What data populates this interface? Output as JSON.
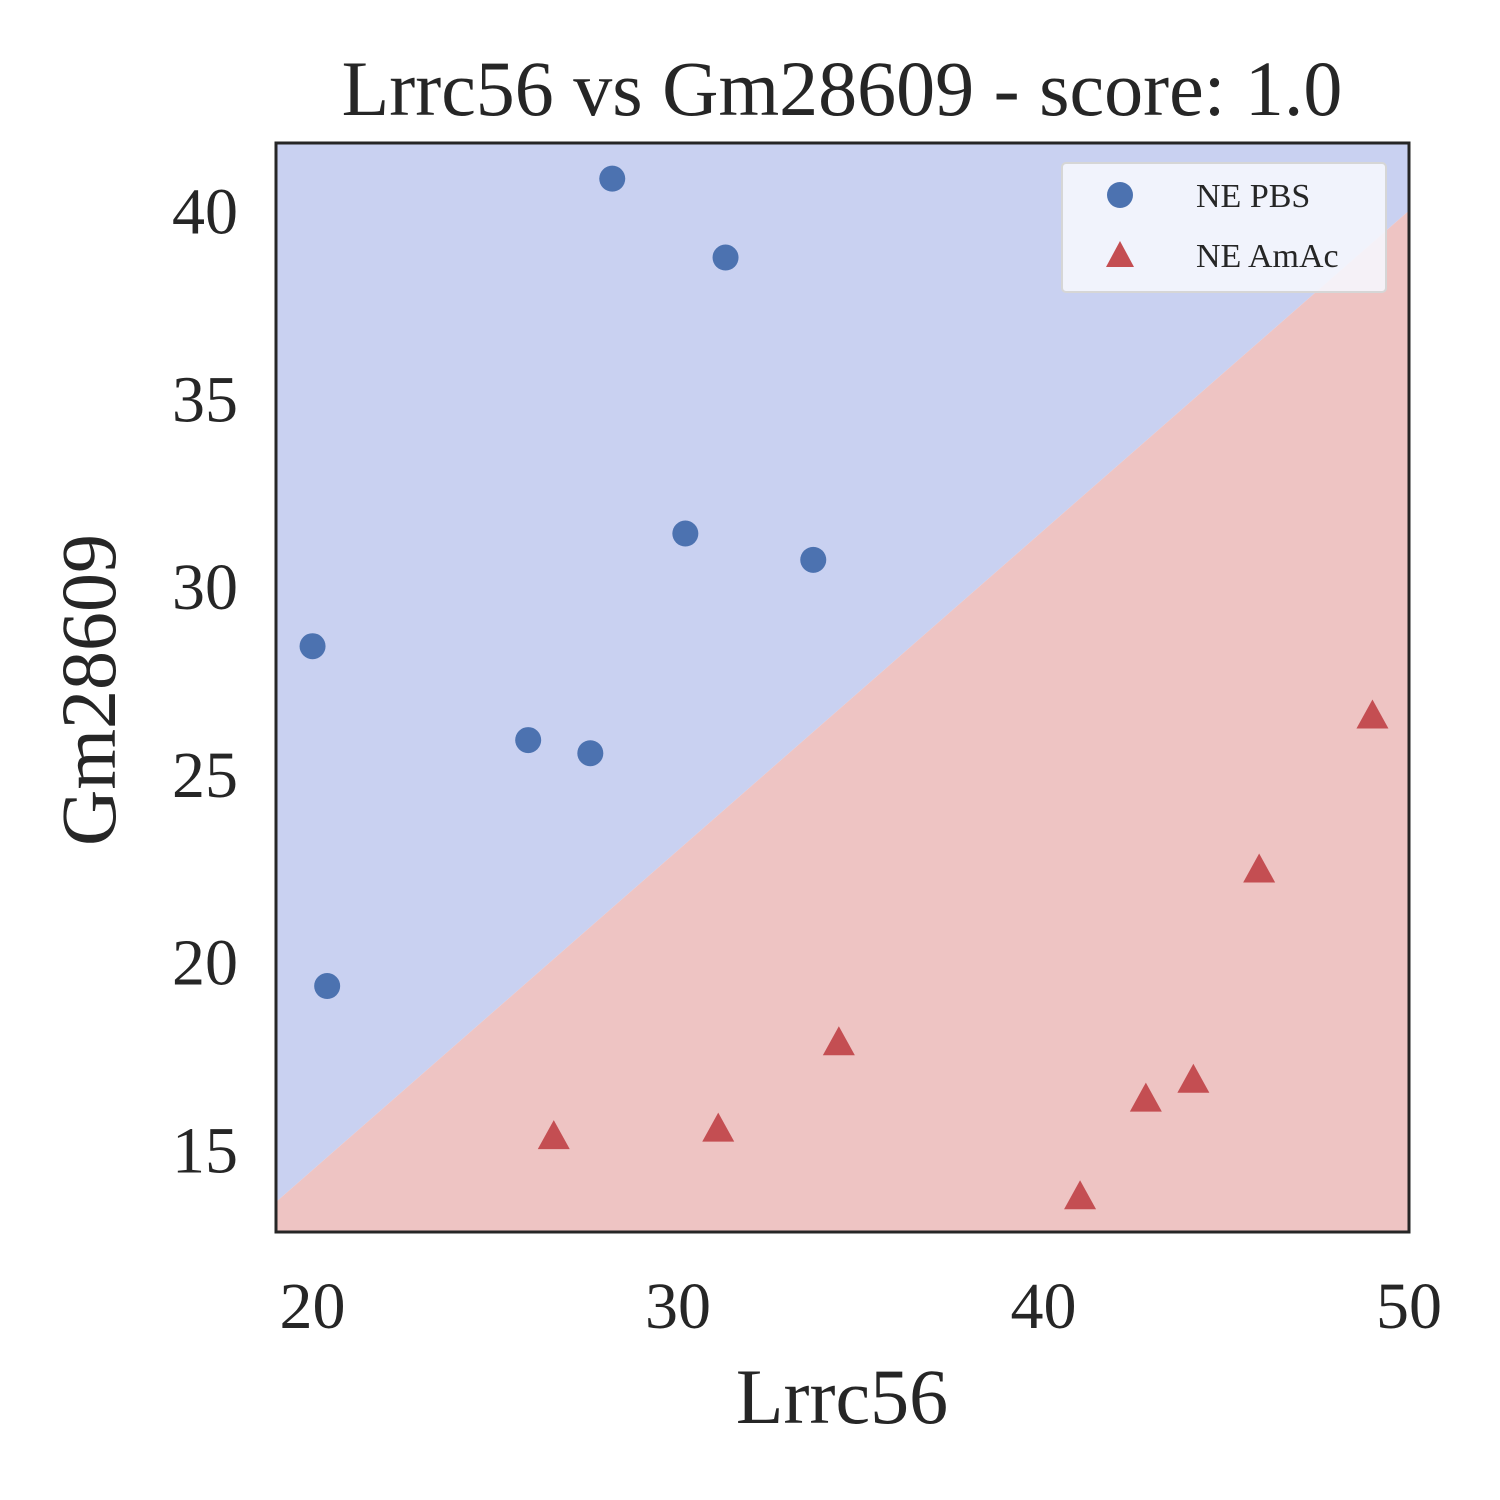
{
  "chart_data": {
    "type": "scatter",
    "title": "Lrrc56 vs Gm28609 - score: 1.0",
    "xlabel": "Lrrc56",
    "ylabel": "Gm28609",
    "xlim": [
      19.0,
      50.0
    ],
    "ylim": [
      12.8,
      41.8
    ],
    "x_ticks": [
      20,
      30,
      40,
      50
    ],
    "y_ticks": [
      15,
      20,
      25,
      30,
      35,
      40
    ],
    "grid": false,
    "legend_position": "top-right",
    "decision_boundary": {
      "points": [
        [
          19.0,
          13.6
        ],
        [
          50.0,
          40.0
        ]
      ],
      "upper_region_class": "NE PBS",
      "lower_region_class": "NE AmAc"
    },
    "colors": {
      "upper_region": "#c9d1f1",
      "lower_region": "#eec4c3",
      "series_0": "#4c72b0",
      "series_1": "#c44e52",
      "frame": "#262626"
    },
    "series": [
      {
        "name": "NE PBS",
        "marker": "circle",
        "points": [
          [
            28.2,
            40.85
          ],
          [
            31.3,
            38.75
          ],
          [
            30.2,
            31.4
          ],
          [
            33.7,
            30.7
          ],
          [
            20.0,
            28.4
          ],
          [
            25.9,
            25.9
          ],
          [
            27.6,
            25.55
          ],
          [
            20.4,
            19.35
          ]
        ]
      },
      {
        "name": "NE AmAc",
        "marker": "triangle",
        "points": [
          [
            49.0,
            26.5
          ],
          [
            45.9,
            22.4
          ],
          [
            34.4,
            17.8
          ],
          [
            44.1,
            16.8
          ],
          [
            42.8,
            16.3
          ],
          [
            26.6,
            15.3
          ],
          [
            31.1,
            15.5
          ],
          [
            41.0,
            13.7
          ]
        ]
      }
    ]
  }
}
